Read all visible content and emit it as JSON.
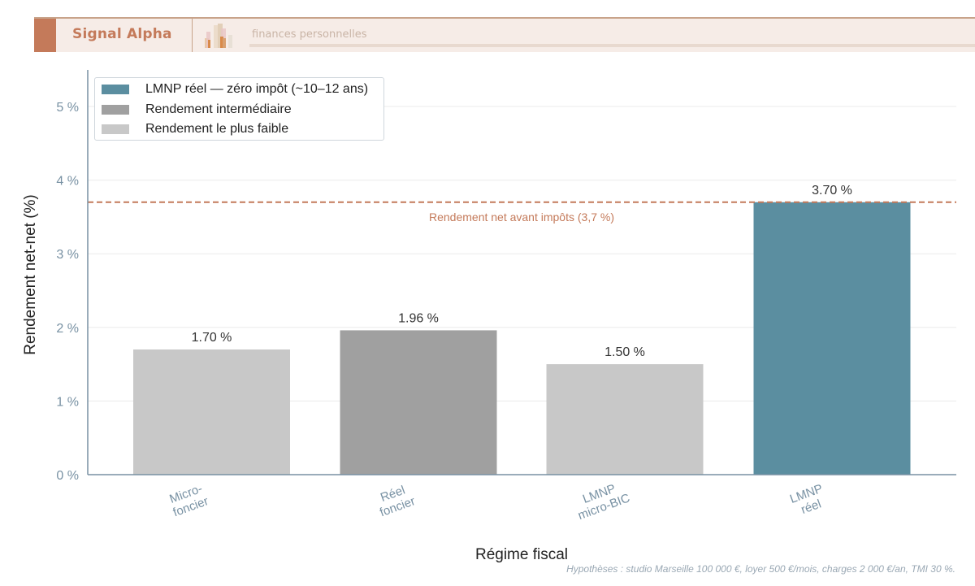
{
  "header": {
    "brand": "Signal Alpha",
    "tagline": "finances personnelles",
    "logo_icon": "bar-chart-logo-icon",
    "colors": {
      "accent": "#c47a5a",
      "banner_bg": "#f6ece7"
    }
  },
  "chart_data": {
    "type": "bar",
    "title": "",
    "xlabel": "Régime fiscal",
    "ylabel": "Rendement net-net (%)",
    "ylim": [
      0,
      5.5
    ],
    "yticks": [
      0,
      1,
      2,
      3,
      4,
      5
    ],
    "ytick_labels": [
      "0 %",
      "1 %",
      "2 %",
      "3 %",
      "4 %",
      "5 %"
    ],
    "grid": true,
    "categories": [
      "Micro-foncier",
      "Réel foncier",
      "LMNP micro-BIC",
      "LMNP réel"
    ],
    "category_lines": [
      [
        "Micro-",
        "foncier"
      ],
      [
        "Réel",
        "foncier"
      ],
      [
        "LMNP",
        "micro-BIC"
      ],
      [
        "LMNP",
        "réel"
      ]
    ],
    "values": [
      1.7,
      1.96,
      1.5,
      3.7
    ],
    "value_labels": [
      "1.70 %",
      "1.96 %",
      "1.50 %",
      "3.70 %"
    ],
    "bar_colors": [
      "#c8c8c8",
      "#a0a0a0",
      "#c8c8c8",
      "#5b8ea0"
    ],
    "reference_line": {
      "value": 3.7,
      "label": "Rendement net avant impôts (3,7 %)",
      "color": "#c47a5a",
      "style": "dashed"
    },
    "legend": {
      "position": "upper left",
      "entries": [
        {
          "label": "LMNP réel — zéro impôt (~10–12 ans)",
          "color": "#5b8ea0"
        },
        {
          "label": "Rendement intermédiaire",
          "color": "#a0a0a0"
        },
        {
          "label": "Rendement le plus faible",
          "color": "#c8c8c8"
        }
      ]
    },
    "footnote": "Hypothèses : studio Marseille 100 000 €, loyer 500 €/mois, charges 2 000 €/an, TMI 30 %."
  }
}
